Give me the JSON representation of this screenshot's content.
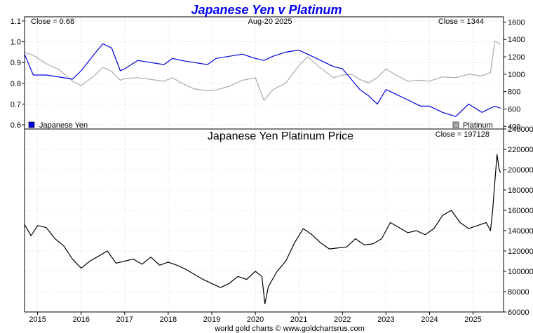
{
  "chart_data": [
    {
      "type": "line",
      "title": "Japanese Yen v Platinum",
      "annotations": {
        "left": "Close = 0.68",
        "center": "Aug-20  2025",
        "right": "Close = 1344"
      },
      "x_ticks": [
        "2015",
        "2016",
        "2017",
        "2018",
        "2019",
        "2020",
        "2021",
        "2022",
        "2023",
        "2024",
        "2025"
      ],
      "xlim": [
        2014.7,
        2025.7
      ],
      "y_left": {
        "ticks": [
          "0.6",
          "0.7",
          "0.8",
          "0.9",
          "1.0",
          "1.1"
        ],
        "ylim": [
          0.58,
          1.12
        ]
      },
      "y_right": {
        "ticks": [
          "400",
          "600",
          "800",
          "1000",
          "1200",
          "1400",
          "1600"
        ],
        "ylim": [
          370,
          1660
        ]
      },
      "legend": {
        "left": "Japanese Yen",
        "right": "Platinum",
        "placement": "bottom"
      },
      "series": [
        {
          "name": "Japanese Yen",
          "axis": "left",
          "color": "#0000dd",
          "x": [
            2014.7,
            2014.9,
            2015.2,
            2015.5,
            2015.8,
            2016.0,
            2016.3,
            2016.5,
            2016.7,
            2016.9,
            2017.0,
            2017.3,
            2017.6,
            2017.9,
            2018.1,
            2018.3,
            2018.6,
            2018.9,
            2019.1,
            2019.4,
            2019.7,
            2020.0,
            2020.2,
            2020.4,
            2020.7,
            2021.0,
            2021.2,
            2021.5,
            2021.8,
            2022.0,
            2022.2,
            2022.4,
            2022.6,
            2022.8,
            2023.0,
            2023.2,
            2023.5,
            2023.8,
            2024.0,
            2024.3,
            2024.6,
            2024.9,
            2025.2,
            2025.5,
            2025.63
          ],
          "values": [
            0.94,
            0.84,
            0.84,
            0.83,
            0.82,
            0.86,
            0.94,
            0.99,
            0.97,
            0.86,
            0.87,
            0.91,
            0.9,
            0.89,
            0.92,
            0.91,
            0.9,
            0.89,
            0.92,
            0.93,
            0.94,
            0.92,
            0.91,
            0.93,
            0.95,
            0.96,
            0.94,
            0.91,
            0.88,
            0.87,
            0.82,
            0.77,
            0.74,
            0.7,
            0.77,
            0.75,
            0.72,
            0.69,
            0.69,
            0.66,
            0.64,
            0.7,
            0.66,
            0.69,
            0.68
          ]
        },
        {
          "name": "Platinum",
          "axis": "right",
          "color": "#aaaaaa",
          "x": [
            2014.7,
            2014.9,
            2015.2,
            2015.5,
            2015.8,
            2016.0,
            2016.3,
            2016.5,
            2016.7,
            2016.9,
            2017.0,
            2017.3,
            2017.6,
            2017.9,
            2018.1,
            2018.3,
            2018.6,
            2018.9,
            2019.1,
            2019.4,
            2019.7,
            2020.0,
            2020.2,
            2020.4,
            2020.7,
            2021.0,
            2021.2,
            2021.5,
            2021.8,
            2022.0,
            2022.2,
            2022.4,
            2022.6,
            2022.8,
            2023.0,
            2023.2,
            2023.5,
            2023.8,
            2024.0,
            2024.3,
            2024.6,
            2024.9,
            2025.2,
            2025.4,
            2025.5,
            2025.63
          ],
          "values": [
            1250,
            1220,
            1120,
            1050,
            920,
            870,
            980,
            1080,
            1030,
            930,
            950,
            960,
            940,
            920,
            960,
            900,
            830,
            810,
            820,
            860,
            930,
            960,
            700,
            820,
            900,
            1100,
            1200,
            1070,
            960,
            990,
            1000,
            940,
            900,
            960,
            1060,
            1000,
            920,
            930,
            920,
            970,
            960,
            1000,
            980,
            1020,
            1380,
            1344
          ]
        }
      ]
    },
    {
      "type": "line",
      "title": "Japanese Yen Platinum Price",
      "annotations": {
        "right": "Close = 197128"
      },
      "x_ticks": [
        "2015",
        "2016",
        "2017",
        "2018",
        "2019",
        "2020",
        "2021",
        "2022",
        "2023",
        "2024",
        "2025"
      ],
      "xlim": [
        2014.7,
        2025.7
      ],
      "y_right": {
        "ticks": [
          "60000",
          "80000",
          "100000",
          "120000",
          "140000",
          "160000",
          "180000",
          "200000",
          "220000",
          "240000"
        ],
        "ylim": [
          60000,
          240000
        ]
      },
      "series": [
        {
          "color": "#000000",
          "x": [
            2014.7,
            2014.85,
            2015.0,
            2015.2,
            2015.4,
            2015.6,
            2015.8,
            2016.0,
            2016.2,
            2016.4,
            2016.6,
            2016.8,
            2017.0,
            2017.2,
            2017.4,
            2017.6,
            2017.8,
            2018.0,
            2018.2,
            2018.4,
            2018.6,
            2018.8,
            2019.0,
            2019.2,
            2019.4,
            2019.6,
            2019.8,
            2020.0,
            2020.15,
            2020.22,
            2020.3,
            2020.5,
            2020.7,
            2020.9,
            2021.1,
            2021.3,
            2021.5,
            2021.7,
            2021.9,
            2022.1,
            2022.3,
            2022.5,
            2022.7,
            2022.9,
            2023.1,
            2023.3,
            2023.5,
            2023.7,
            2023.9,
            2024.1,
            2024.3,
            2024.5,
            2024.7,
            2024.9,
            2025.1,
            2025.3,
            2025.4,
            2025.45,
            2025.5,
            2025.55,
            2025.6,
            2025.63
          ],
          "values": [
            146000,
            135000,
            145000,
            143000,
            132000,
            125000,
            112000,
            103000,
            110000,
            115000,
            120000,
            108000,
            110000,
            112000,
            107000,
            114000,
            106000,
            109000,
            106000,
            102000,
            97000,
            92000,
            88000,
            84000,
            88000,
            95000,
            92000,
            100000,
            95000,
            68000,
            85000,
            100000,
            110000,
            128000,
            142000,
            136000,
            128000,
            122000,
            123000,
            124000,
            132000,
            126000,
            127000,
            132000,
            148000,
            143000,
            138000,
            140000,
            136000,
            142000,
            155000,
            160000,
            148000,
            142000,
            145000,
            148000,
            140000,
            160000,
            188000,
            215000,
            200000,
            197128
          ]
        }
      ]
    }
  ],
  "footer": "world gold charts © www.goldchartsrus.com"
}
